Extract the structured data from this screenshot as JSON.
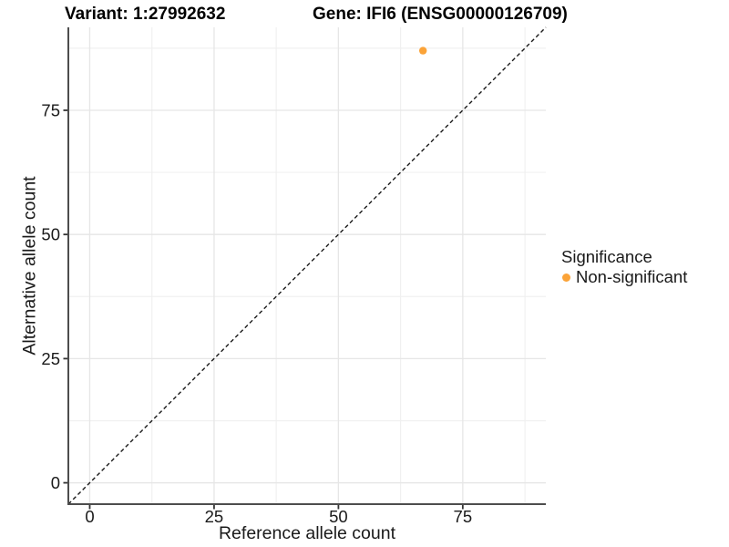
{
  "chart_data": {
    "type": "scatter",
    "titles": {
      "variant": "Variant: 1:27992632",
      "gene": "Gene: IFI6 (ENSG00000126709)"
    },
    "xlabel": "Reference allele count",
    "ylabel": "Alternative allele count",
    "axes": {
      "xlim": [
        -4.3,
        91.7
      ],
      "ylim": [
        -4.3,
        91.7
      ],
      "x_major_ticks": [
        0,
        25,
        50,
        75
      ],
      "y_major_ticks": [
        0,
        25,
        50,
        75
      ],
      "x_minor_gridlines": [
        12.5,
        37.5,
        62.5,
        87.5
      ],
      "y_minor_gridlines": [
        12.5,
        37.5,
        62.5,
        87.5
      ],
      "grid": "major and minor light-gray gridlines on white panel"
    },
    "reference_line": {
      "style": "dashed",
      "slope": 1,
      "intercept": 0,
      "color": "#1a1a1a"
    },
    "series": [
      {
        "name": "Non-significant",
        "color": "#FBA338",
        "point_radius": 4.2,
        "points": [
          {
            "x": 67,
            "y": 87
          }
        ]
      }
    ],
    "legend": {
      "position": "right",
      "title": "Significance",
      "items": [
        {
          "label": "Non-significant",
          "color": "#FBA338"
        }
      ]
    }
  },
  "colors": {
    "background": "#ffffff",
    "grid_major": "#e6e6e6",
    "grid_minor": "#f0f0f0",
    "axis_line": "#4d4d4d",
    "tick_mark": "#333333",
    "text": "#1a1a1a",
    "title_text": "#000000"
  }
}
